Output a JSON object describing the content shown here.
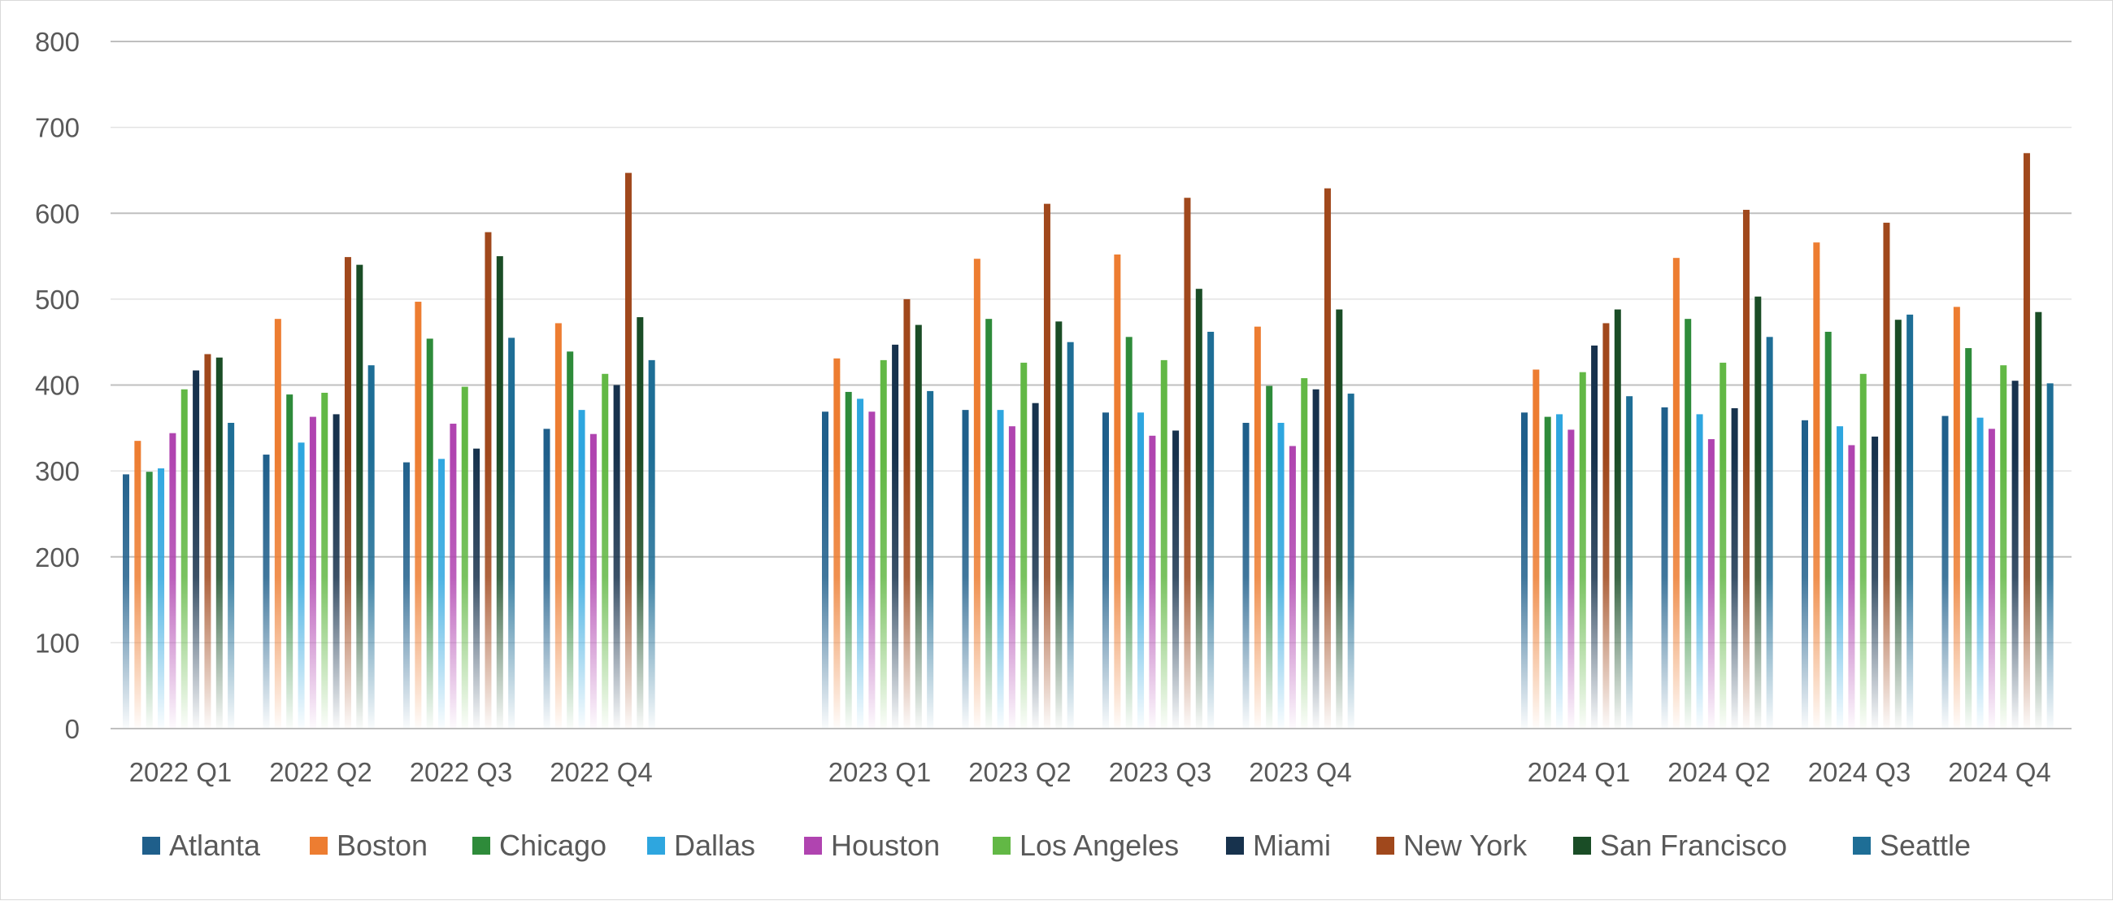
{
  "chart_data": {
    "type": "bar",
    "title": "",
    "xlabel": "",
    "ylabel": "",
    "ylim": [
      0,
      800
    ],
    "y_ticks": [
      "0",
      "100",
      "200",
      "300",
      "400",
      "500",
      "600",
      "700",
      "800"
    ],
    "grid": true,
    "legend_position": "bottom",
    "category_groups": [
      [
        "2022 Q1",
        "2022 Q2",
        "2022 Q3",
        "2022 Q4"
      ],
      [
        "2023 Q1",
        "2023 Q2",
        "2023 Q3",
        "2023 Q4"
      ],
      [
        "2024 Q1",
        "2024 Q2",
        "2024 Q3",
        "2024 Q4"
      ]
    ],
    "categories": [
      "2022 Q1",
      "2022 Q2",
      "2022 Q3",
      "2022 Q4",
      "2023 Q1",
      "2023 Q2",
      "2023 Q3",
      "2023 Q4",
      "2024 Q1",
      "2024 Q2",
      "2024 Q3",
      "2024 Q4"
    ],
    "series": [
      {
        "name": "Atlanta",
        "color": "#1f5f8b",
        "values": [
          296,
          319,
          310,
          349,
          369,
          371,
          368,
          356,
          368,
          374,
          359,
          364
        ]
      },
      {
        "name": "Boston",
        "color": "#ed7d31",
        "values": [
          335,
          477,
          497,
          472,
          431,
          547,
          552,
          468,
          418,
          548,
          566,
          491
        ]
      },
      {
        "name": "Chicago",
        "color": "#2e8b3a",
        "values": [
          299,
          389,
          454,
          439,
          392,
          477,
          456,
          399,
          363,
          477,
          462,
          443
        ]
      },
      {
        "name": "Dallas",
        "color": "#2ea6df",
        "values": [
          303,
          333,
          314,
          371,
          384,
          371,
          368,
          356,
          366,
          366,
          352,
          362
        ]
      },
      {
        "name": "Houston",
        "color": "#b044b0",
        "values": [
          344,
          363,
          355,
          343,
          369,
          352,
          341,
          329,
          348,
          337,
          330,
          349
        ]
      },
      {
        "name": "Los Angeles",
        "color": "#62b845",
        "values": [
          395,
          391,
          398,
          413,
          429,
          426,
          429,
          408,
          415,
          426,
          413,
          423
        ]
      },
      {
        "name": "Miami",
        "color": "#17324d",
        "values": [
          417,
          366,
          326,
          400,
          447,
          379,
          347,
          395,
          446,
          373,
          340,
          405
        ]
      },
      {
        "name": "New York",
        "color": "#a0481c",
        "values": [
          436,
          549,
          578,
          647,
          500,
          611,
          618,
          629,
          472,
          604,
          589,
          670
        ]
      },
      {
        "name": "San Francisco",
        "color": "#1a4d26",
        "values": [
          432,
          540,
          550,
          479,
          470,
          474,
          512,
          488,
          488,
          503,
          476,
          485
        ]
      },
      {
        "name": "Seattle",
        "color": "#1e6e96",
        "values": [
          356,
          423,
          455,
          429,
          393,
          450,
          462,
          390,
          387,
          456,
          482,
          402
        ]
      }
    ]
  }
}
